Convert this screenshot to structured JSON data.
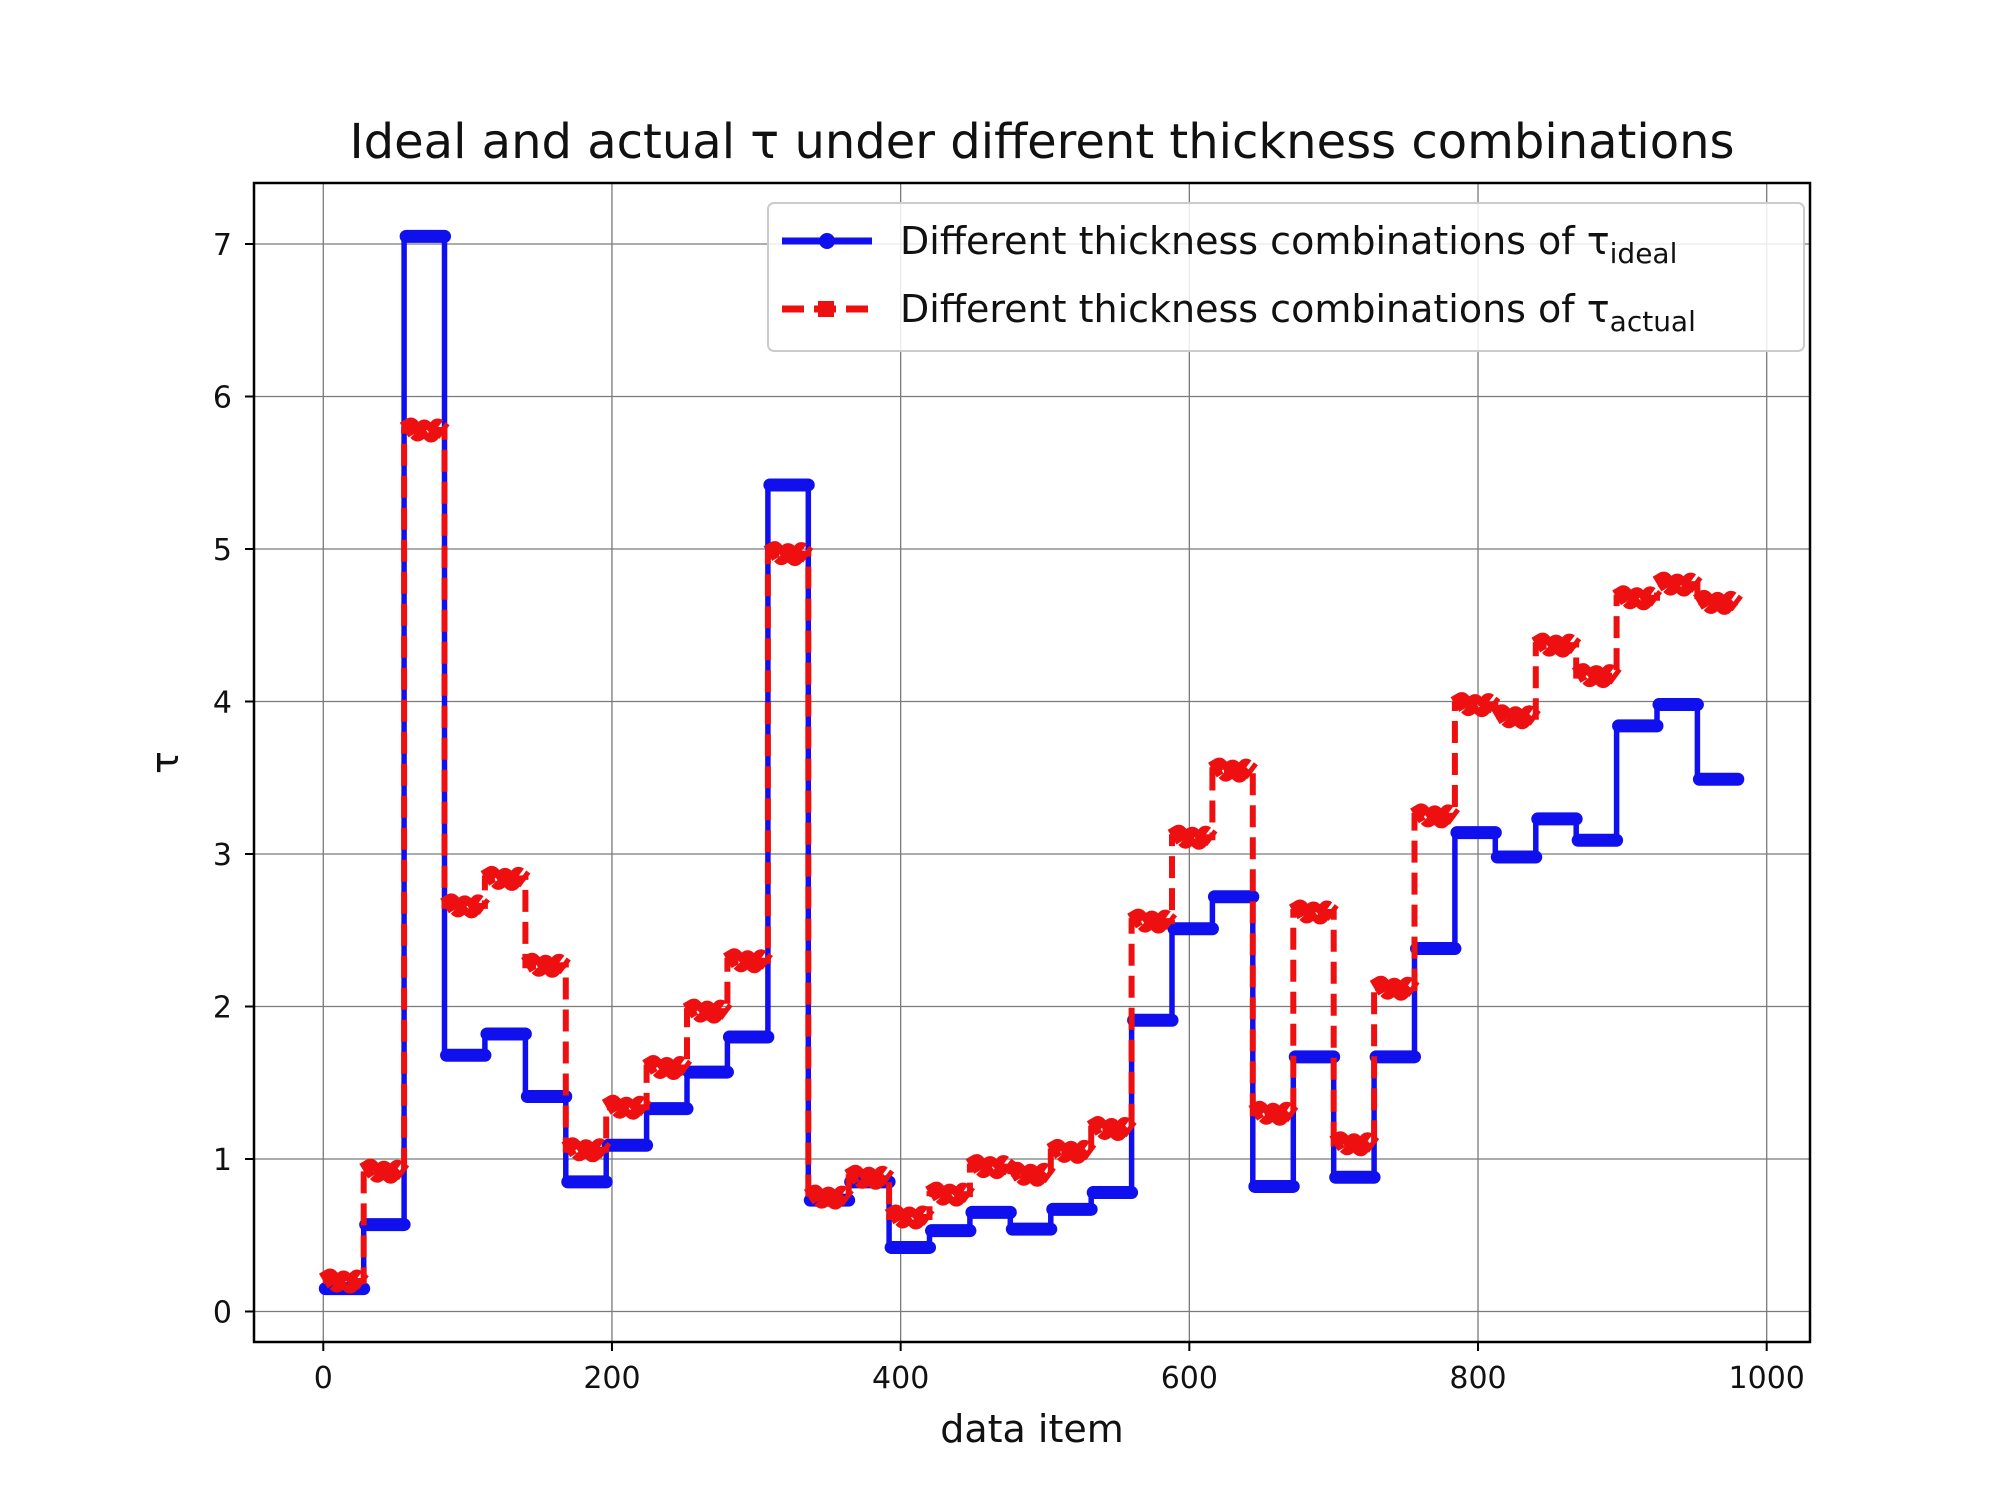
{
  "chart_data": {
    "type": "line",
    "title": "Ideal and actual τ under different thickness combinations",
    "xlabel": "data item",
    "ylabel": "τ",
    "xlim": [
      -48,
      1030
    ],
    "ylim": [
      -0.2,
      7.4
    ],
    "x_ticks": [
      0,
      200,
      400,
      600,
      800,
      1000
    ],
    "y_ticks": [
      0,
      1,
      2,
      3,
      4,
      5,
      6,
      7
    ],
    "grid": true,
    "legend_position": "top-right",
    "legend": [
      {
        "prefix": "Different thickness combinations of τ",
        "sub": "ideal"
      },
      {
        "prefix": "Different thickness combinations of τ",
        "sub": "actual"
      }
    ],
    "series": [
      {
        "key": "ideal",
        "color": "#1010ee",
        "style": "solid-step",
        "segments": [
          [
            0,
            28,
            0.15
          ],
          [
            28,
            56,
            0.57
          ],
          [
            56,
            84,
            7.05
          ],
          [
            84,
            112,
            1.68
          ],
          [
            112,
            140,
            1.82
          ],
          [
            140,
            168,
            1.41
          ],
          [
            168,
            196,
            0.85
          ],
          [
            196,
            224,
            1.09
          ],
          [
            224,
            252,
            1.33
          ],
          [
            252,
            280,
            1.57
          ],
          [
            280,
            308,
            1.8
          ],
          [
            308,
            336,
            5.42
          ],
          [
            336,
            364,
            0.73
          ],
          [
            364,
            392,
            0.85
          ],
          [
            392,
            420,
            0.42
          ],
          [
            420,
            448,
            0.53
          ],
          [
            448,
            476,
            0.65
          ],
          [
            476,
            504,
            0.54
          ],
          [
            504,
            532,
            0.67
          ],
          [
            532,
            560,
            0.78
          ],
          [
            560,
            588,
            1.91
          ],
          [
            588,
            616,
            2.51
          ],
          [
            616,
            644,
            2.72
          ],
          [
            644,
            672,
            0.82
          ],
          [
            672,
            700,
            1.67
          ],
          [
            700,
            728,
            0.88
          ],
          [
            728,
            756,
            1.67
          ],
          [
            756,
            784,
            2.38
          ],
          [
            784,
            812,
            3.14
          ],
          [
            812,
            840,
            2.98
          ],
          [
            840,
            868,
            3.23
          ],
          [
            868,
            896,
            3.09
          ],
          [
            896,
            924,
            3.84
          ],
          [
            924,
            952,
            3.98
          ],
          [
            952,
            980,
            3.49
          ]
        ]
      },
      {
        "key": "actual",
        "color": "#ee1010",
        "style": "dashed-step",
        "segments": [
          [
            0,
            28,
            0.2
          ],
          [
            28,
            56,
            0.92
          ],
          [
            56,
            84,
            5.78
          ],
          [
            84,
            112,
            2.66
          ],
          [
            112,
            140,
            2.84
          ],
          [
            140,
            168,
            2.27
          ],
          [
            168,
            196,
            1.06
          ],
          [
            196,
            224,
            1.34
          ],
          [
            224,
            252,
            1.6
          ],
          [
            252,
            280,
            1.97
          ],
          [
            280,
            308,
            2.3
          ],
          [
            308,
            336,
            4.97
          ],
          [
            336,
            364,
            0.75
          ],
          [
            364,
            392,
            0.88
          ],
          [
            392,
            420,
            0.62
          ],
          [
            420,
            448,
            0.77
          ],
          [
            448,
            476,
            0.95
          ],
          [
            476,
            504,
            0.9
          ],
          [
            504,
            532,
            1.05
          ],
          [
            532,
            560,
            1.2
          ],
          [
            560,
            588,
            2.56
          ],
          [
            588,
            616,
            3.11
          ],
          [
            616,
            644,
            3.55
          ],
          [
            644,
            672,
            1.3
          ],
          [
            672,
            700,
            2.62
          ],
          [
            700,
            728,
            1.1
          ],
          [
            728,
            756,
            2.12
          ],
          [
            756,
            784,
            3.25
          ],
          [
            784,
            812,
            3.98
          ],
          [
            812,
            840,
            3.9
          ],
          [
            840,
            868,
            4.37
          ],
          [
            868,
            896,
            4.17
          ],
          [
            896,
            924,
            4.68
          ],
          [
            924,
            952,
            4.77
          ],
          [
            952,
            980,
            4.65
          ]
        ]
      }
    ]
  }
}
